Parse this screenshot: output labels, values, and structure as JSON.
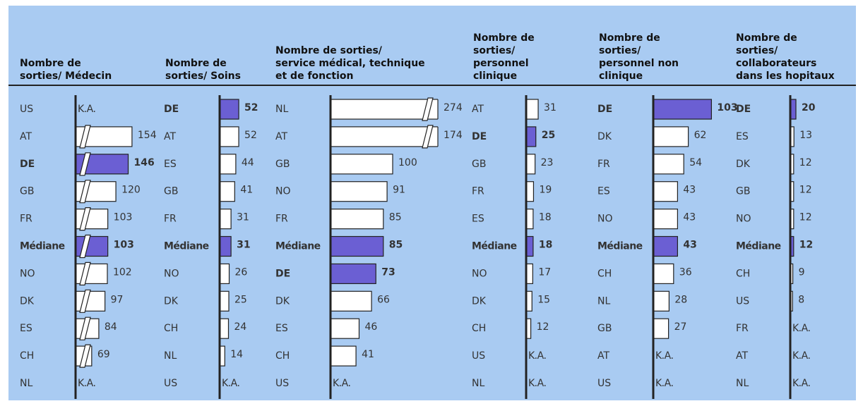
{
  "chart_data": [
    {
      "type": "bar",
      "title": [
        "Nombre de",
        "sorties/ Médecin"
      ],
      "categories": [
        "US",
        "AT",
        "DE",
        "GB",
        "FR",
        "Médiane",
        "NO",
        "DK",
        "ES",
        "CH",
        "NL"
      ],
      "values": [
        null,
        154,
        146,
        120,
        103,
        103,
        102,
        97,
        84,
        69,
        null
      ],
      "value_labels": [
        "K.A.",
        "154",
        "146",
        "120",
        "103",
        "103",
        "102",
        "97",
        "84",
        "69",
        "K.A."
      ],
      "colors": [
        "#ffffff",
        "#ffffff",
        "#6b5fd3",
        "#ffffff",
        "#ffffff",
        "#6b5fd3",
        "#ffffff",
        "#ffffff",
        "#ffffff",
        "#ffffff",
        "#ffffff"
      ],
      "xlim": [
        35,
        175
      ],
      "broken_axis": true
    },
    {
      "type": "bar",
      "title": [
        "Nombre de",
        "sorties/ Soins"
      ],
      "categories": [
        "DE",
        "AT",
        "ES",
        "GB",
        "FR",
        "Médiane",
        "NO",
        "DK",
        "CH",
        "NL",
        "US"
      ],
      "values": [
        52,
        52,
        44,
        41,
        31,
        31,
        26,
        25,
        24,
        14,
        null
      ],
      "value_labels": [
        "52",
        "52",
        "44",
        "41",
        "31",
        "31",
        "26",
        "25",
        "24",
        "14",
        "K.A."
      ],
      "colors": [
        "#6b5fd3",
        "#ffffff",
        "#ffffff",
        "#ffffff",
        "#ffffff",
        "#6b5fd3",
        "#ffffff",
        "#ffffff",
        "#ffffff",
        "#ffffff",
        "#ffffff"
      ],
      "xlim": [
        0,
        100
      ],
      "broken_axis": false
    },
    {
      "type": "bar",
      "title": [
        "Nombre de sorties/",
        "service médical, technique",
        "et de fonction"
      ],
      "categories": [
        "NL",
        "AT",
        "GB",
        "NO",
        "FR",
        "Médiane",
        "DE",
        "DK",
        "ES",
        "CH",
        "US"
      ],
      "values": [
        274,
        174,
        100,
        91,
        85,
        85,
        73,
        66,
        46,
        41,
        null
      ],
      "value_labels": [
        "274",
        "174",
        "100",
        "91",
        "85",
        "85",
        "73",
        "66",
        "46",
        "41",
        "K.A."
      ],
      "colors": [
        "#ffffff",
        "#ffffff",
        "#ffffff",
        "#ffffff",
        "#ffffff",
        "#6b5fd3",
        "#6b5fd3",
        "#ffffff",
        "#ffffff",
        "#ffffff",
        "#ffffff"
      ],
      "xlim": [
        0,
        200
      ],
      "broken_axis": false
    },
    {
      "type": "bar",
      "title": [
        "Nombre de",
        "sorties/",
        "personnel",
        "clinique"
      ],
      "categories": [
        "AT",
        "DE",
        "GB",
        "FR",
        "ES",
        "Médiane",
        "NO",
        "DK",
        "CH",
        "US",
        "NL"
      ],
      "values": [
        31,
        25,
        23,
        19,
        18,
        18,
        17,
        15,
        12,
        null,
        null
      ],
      "value_labels": [
        "31",
        "25",
        "23",
        "19",
        "18",
        "18",
        "17",
        "15",
        "12",
        "K.A.",
        "K.A."
      ],
      "colors": [
        "#ffffff",
        "#6b5fd3",
        "#ffffff",
        "#ffffff",
        "#ffffff",
        "#6b5fd3",
        "#ffffff",
        "#ffffff",
        "#ffffff",
        "#ffffff",
        "#ffffff"
      ],
      "xlim": [
        0,
        60
      ],
      "broken_axis": false
    },
    {
      "type": "bar",
      "title": [
        "Nombre de",
        "sorties/",
        "personnel non",
        "clinique"
      ],
      "categories": [
        "DE",
        "DK",
        "FR",
        "ES",
        "NO",
        "Médiane",
        "CH",
        "NL",
        "GB",
        "AT",
        "US"
      ],
      "values": [
        103,
        62,
        54,
        43,
        43,
        43,
        36,
        28,
        27,
        null,
        null
      ],
      "value_labels": [
        "103",
        "62",
        "54",
        "43",
        "43",
        "43",
        "36",
        "28",
        "27",
        "K.A.",
        "K.A."
      ],
      "colors": [
        "#6b5fd3",
        "#ffffff",
        "#ffffff",
        "#ffffff",
        "#ffffff",
        "#6b5fd3",
        "#ffffff",
        "#ffffff",
        "#ffffff",
        "#ffffff",
        "#ffffff"
      ],
      "xlim": [
        0,
        130
      ],
      "broken_axis": false
    },
    {
      "type": "bar",
      "title": [
        "Nombre de",
        "sorties/",
        "collaborateurs",
        "dans les hopitaux"
      ],
      "categories": [
        "DE",
        "ES",
        "DK",
        "GB",
        "NO",
        "Médiane",
        "CH",
        "US",
        "FR",
        "AT",
        "NL"
      ],
      "values": [
        20,
        13,
        12,
        12,
        12,
        12,
        9,
        8,
        null,
        null,
        null
      ],
      "value_labels": [
        "20",
        "13",
        "12",
        "12",
        "12",
        "12",
        "9",
        "8",
        "K.A.",
        "K.A.",
        "K.A."
      ],
      "colors": [
        "#6b5fd3",
        "#ffffff",
        "#ffffff",
        "#ffffff",
        "#ffffff",
        "#6b5fd3",
        "#ffffff",
        "#ffffff",
        "#ffffff",
        "#ffffff",
        "#ffffff"
      ],
      "xlim": [
        0,
        50
      ],
      "broken_axis": false
    }
  ]
}
